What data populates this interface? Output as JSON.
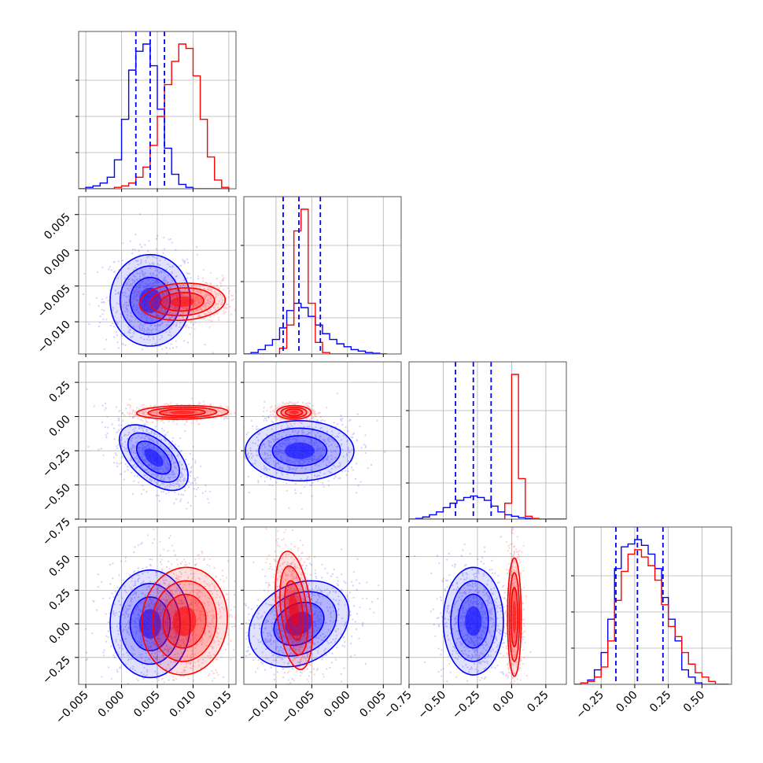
{
  "chart_data": {
    "type": "corner",
    "grid": true,
    "colors": {
      "blue_series": "#0000ff",
      "red_series": "#ff0000",
      "frame": "#555555",
      "grid": "#b0b0b0"
    },
    "params": [
      {
        "range": [
          -0.006,
          0.016
        ],
        "ticks": [
          -0.005,
          0.0,
          0.005,
          0.01,
          0.015
        ],
        "tick_labels": [
          "−0.005",
          "0.000",
          "0.005",
          "0.010",
          "0.015"
        ]
      },
      {
        "range": [
          -0.0145,
          0.0075
        ],
        "ticks": [
          -0.01,
          -0.005,
          0.0,
          0.005
        ],
        "tick_labels": [
          "−0.010",
          "−0.005",
          "0.000",
          "0.005"
        ]
      },
      {
        "range": [
          -0.75,
          0.4
        ],
        "ticks": [
          -0.75,
          -0.5,
          -0.25,
          0.0,
          0.25
        ],
        "tick_labels": [
          "−0.75",
          "−0.50",
          "−0.25",
          "0.00",
          "0.25"
        ]
      },
      {
        "range": [
          -0.45,
          0.72
        ],
        "ticks": [
          -0.25,
          0.0,
          0.25,
          0.5
        ],
        "tick_labels": [
          "−0.25",
          "0.00",
          "0.25",
          "0.50"
        ]
      }
    ],
    "marginals": [
      {
        "param": 0,
        "bins": [
          -0.006,
          -0.005,
          -0.004,
          -0.003,
          -0.002,
          -0.001,
          0.0,
          0.001,
          0.002,
          0.003,
          0.004,
          0.005,
          0.006,
          0.007,
          0.008,
          0.009,
          0.01,
          0.011,
          0.012,
          0.013,
          0.014,
          0.015
        ],
        "blue": [
          0.0,
          0.01,
          0.02,
          0.04,
          0.08,
          0.2,
          0.48,
          0.82,
          0.95,
          1.0,
          0.85,
          0.55,
          0.28,
          0.1,
          0.03,
          0.01,
          0.0,
          0.0,
          0.0,
          0.0,
          0.0
        ],
        "red": [
          0.0,
          0.0,
          0.0,
          0.0,
          0.0,
          0.01,
          0.02,
          0.04,
          0.08,
          0.15,
          0.3,
          0.5,
          0.72,
          0.88,
          1.0,
          0.97,
          0.78,
          0.48,
          0.22,
          0.06,
          0.01
        ],
        "quantiles": [
          0.002,
          0.004,
          0.006
        ]
      },
      {
        "param": 1,
        "bins": [
          -0.0145,
          -0.0135,
          -0.0125,
          -0.0115,
          -0.0105,
          -0.0095,
          -0.0085,
          -0.0075,
          -0.0065,
          -0.0055,
          -0.0045,
          -0.0035,
          -0.0025,
          -0.0015,
          -0.0005,
          0.0005,
          0.0015,
          0.0025,
          0.0035,
          0.0045,
          0.0055
        ],
        "blue": [
          0.0,
          0.01,
          0.03,
          0.06,
          0.1,
          0.18,
          0.3,
          0.35,
          0.32,
          0.26,
          0.2,
          0.14,
          0.1,
          0.07,
          0.05,
          0.03,
          0.02,
          0.01,
          0.005,
          0.0
        ],
        "red": [
          0.0,
          0.0,
          0.0,
          0.0,
          0.0,
          0.04,
          0.2,
          0.85,
          1.0,
          0.35,
          0.08,
          0.01,
          0.0,
          0.0,
          0.0,
          0.0,
          0.0,
          0.0,
          0.0,
          0.0
        ],
        "quantiles": [
          -0.009,
          -0.0068,
          -0.0038
        ]
      },
      {
        "param": 2,
        "bins": [
          -0.75,
          -0.7,
          -0.65,
          -0.6,
          -0.55,
          -0.5,
          -0.45,
          -0.4,
          -0.35,
          -0.3,
          -0.25,
          -0.2,
          -0.15,
          -0.1,
          -0.05,
          0.0,
          0.05,
          0.1,
          0.15,
          0.2,
          0.25,
          0.3,
          0.35,
          0.4
        ],
        "blue": [
          0.0,
          0.005,
          0.015,
          0.03,
          0.05,
          0.08,
          0.11,
          0.13,
          0.15,
          0.16,
          0.15,
          0.13,
          0.09,
          0.05,
          0.03,
          0.02,
          0.01,
          0.005,
          0.0,
          0.0,
          0.0,
          0.0,
          0.0
        ],
        "red": [
          0.0,
          0.0,
          0.0,
          0.0,
          0.0,
          0.0,
          0.0,
          0.0,
          0.0,
          0.0,
          0.0,
          0.0,
          0.0,
          0.0,
          0.11,
          1.0,
          0.28,
          0.02,
          0.005,
          0.0,
          0.0,
          0.0,
          0.0
        ],
        "quantiles": [
          -0.41,
          -0.28,
          -0.15
        ]
      },
      {
        "param": 3,
        "bins": [
          -0.45,
          -0.4,
          -0.35,
          -0.3,
          -0.25,
          -0.2,
          -0.15,
          -0.1,
          -0.05,
          0.0,
          0.05,
          0.1,
          0.15,
          0.2,
          0.25,
          0.3,
          0.35,
          0.4,
          0.45,
          0.5,
          0.55,
          0.6,
          0.65,
          0.7
        ],
        "blue": [
          0.0,
          0.01,
          0.03,
          0.1,
          0.22,
          0.45,
          0.8,
          0.95,
          0.97,
          1.0,
          0.96,
          0.9,
          0.8,
          0.6,
          0.45,
          0.3,
          0.1,
          0.05,
          0.01,
          0.0,
          0.0,
          0.0,
          0.0
        ],
        "red": [
          0.0,
          0.01,
          0.02,
          0.05,
          0.12,
          0.3,
          0.58,
          0.78,
          0.9,
          0.93,
          0.88,
          0.82,
          0.72,
          0.55,
          0.4,
          0.33,
          0.22,
          0.14,
          0.08,
          0.05,
          0.02,
          0.0,
          0.0
        ],
        "quantiles": [
          -0.14,
          0.02,
          0.21
        ]
      }
    ],
    "joint": [
      {
        "x": 0,
        "y": 1,
        "blue": {
          "mean": [
            0.004,
            -0.007
          ],
          "sd": [
            0.0028,
            0.0032
          ],
          "rho": 0.0
        },
        "red": {
          "mean": [
            0.0085,
            -0.0072
          ],
          "sd": [
            0.003,
            0.0013
          ],
          "rho": 0.1
        }
      },
      {
        "x": 0,
        "y": 2,
        "blue": {
          "mean": [
            0.0045,
            -0.3
          ],
          "sd": [
            0.0024,
            0.12
          ],
          "rho": -0.55
        },
        "red": {
          "mean": [
            0.0085,
            0.03
          ],
          "sd": [
            0.0032,
            0.025
          ],
          "rho": 0.1
        }
      },
      {
        "x": 0,
        "y": 3,
        "blue": {
          "mean": [
            0.004,
            0.0
          ],
          "sd": [
            0.0028,
            0.2
          ],
          "rho": 0.0
        },
        "red": {
          "mean": [
            0.0088,
            0.02
          ],
          "sd": [
            0.003,
            0.2
          ],
          "rho": 0.05
        }
      },
      {
        "x": 1,
        "y": 2,
        "blue": {
          "mean": [
            -0.0067,
            -0.25
          ],
          "sd": [
            0.0038,
            0.11
          ],
          "rho": 0.0
        },
        "red": {
          "mean": [
            -0.0075,
            0.03
          ],
          "sd": [
            0.0012,
            0.025
          ],
          "rho": 0.0
        }
      },
      {
        "x": 1,
        "y": 3,
        "blue": {
          "mean": [
            -0.0068,
            0.0
          ],
          "sd": [
            0.0035,
            0.16
          ],
          "rho": 0.25
        },
        "red": {
          "mean": [
            -0.0075,
            0.1
          ],
          "sd": [
            0.0013,
            0.22
          ],
          "rho": -0.35
        }
      },
      {
        "x": 2,
        "y": 3,
        "blue": {
          "mean": [
            -0.28,
            0.02
          ],
          "sd": [
            0.11,
            0.2
          ],
          "rho": 0.0
        },
        "red": {
          "mean": [
            0.02,
            0.05
          ],
          "sd": [
            0.025,
            0.22
          ],
          "rho": 0.0
        }
      }
    ]
  }
}
